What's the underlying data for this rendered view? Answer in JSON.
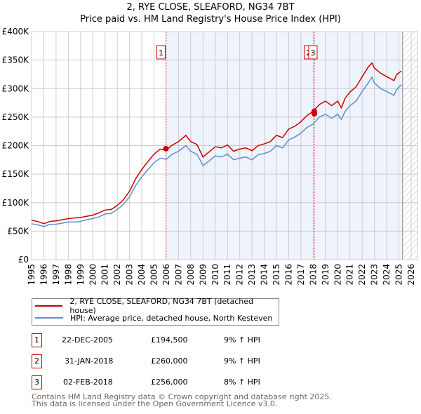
{
  "chart_data": {
    "type": "line",
    "title": "2, RYE CLOSE, SLEAFORD, NG34 7BT",
    "subtitle": "Price paid vs. HM Land Registry's House Price Index (HPI)",
    "xlim": [
      1995,
      2026
    ],
    "ylim": [
      0,
      400000
    ],
    "x_ticks": [
      "1995",
      "1996",
      "1997",
      "1998",
      "1999",
      "2000",
      "2001",
      "2002",
      "2003",
      "2004",
      "2005",
      "2006",
      "2007",
      "2008",
      "2009",
      "2010",
      "2011",
      "2012",
      "2013",
      "2014",
      "2015",
      "2016",
      "2017",
      "2018",
      "2019",
      "2020",
      "2021",
      "2022",
      "2023",
      "2024",
      "2025",
      "2026"
    ],
    "y_ticks": [
      {
        "v": 0,
        "label": "£0"
      },
      {
        "v": 50000,
        "label": "£50K"
      },
      {
        "v": 100000,
        "label": "£100K"
      },
      {
        "v": 150000,
        "label": "£150K"
      },
      {
        "v": 200000,
        "label": "£200K"
      },
      {
        "v": 250000,
        "label": "£250K"
      },
      {
        "v": 300000,
        "label": "£300K"
      },
      {
        "v": 350000,
        "label": "£350K"
      },
      {
        "v": 400000,
        "label": "£400K"
      }
    ],
    "grid": true,
    "shaded_span": [
      2005.97,
      2025.3
    ],
    "forecast_hatch_from": 2025.3,
    "x": [
      1995,
      1995.5,
      1996,
      1996.5,
      1997,
      1997.5,
      1998,
      1998.5,
      1999,
      1999.5,
      2000,
      2000.5,
      2001,
      2001.5,
      2002,
      2002.5,
      2003,
      2003.5,
      2004,
      2004.5,
      2005,
      2005.5,
      2006,
      2006.5,
      2007,
      2007.6,
      2008,
      2008.5,
      2009,
      2009.5,
      2010,
      2010.5,
      2011,
      2011.5,
      2012,
      2012.5,
      2013,
      2013.5,
      2014,
      2014.5,
      2015,
      2015.5,
      2016,
      2016.5,
      2017,
      2017.5,
      2018,
      2018.5,
      2019,
      2019.5,
      2020,
      2020.3,
      2020.6,
      2021,
      2021.5,
      2022,
      2022.5,
      2022.8,
      2023,
      2023.5,
      2024,
      2024.6,
      2024.8,
      2025.2
    ],
    "series": [
      {
        "name": "2, RYE CLOSE, SLEAFORD, NG34 7BT (detached house)",
        "color": "#cc0000",
        "values": [
          69000,
          67000,
          63000,
          67000,
          68000,
          70000,
          72000,
          73000,
          74000,
          76000,
          78000,
          82000,
          87000,
          88000,
          95000,
          105000,
          120000,
          142000,
          158000,
          172000,
          185000,
          194000,
          192000,
          201000,
          207000,
          218000,
          207000,
          202000,
          180000,
          189000,
          198000,
          196000,
          201000,
          190000,
          194000,
          196000,
          191000,
          200000,
          203000,
          207000,
          218000,
          214000,
          229000,
          234000,
          242000,
          253000,
          260000,
          272000,
          278000,
          270000,
          278000,
          266000,
          283000,
          294000,
          303000,
          321000,
          338000,
          345000,
          336000,
          327000,
          321000,
          314000,
          324000,
          331000
        ]
      },
      {
        "name": "HPI: Average price, detached house, North Kesteven",
        "color": "#5b8fd4",
        "values": [
          63000,
          61000,
          58000,
          62000,
          62000,
          64000,
          66000,
          66000,
          67000,
          70000,
          72000,
          75000,
          80000,
          81000,
          88000,
          97000,
          110000,
          130000,
          145000,
          158000,
          170000,
          178000,
          176000,
          185000,
          190000,
          200000,
          190000,
          185000,
          165000,
          173000,
          182000,
          180000,
          185000,
          175000,
          178000,
          180000,
          175000,
          184000,
          186000,
          190000,
          200000,
          196000,
          210000,
          215000,
          222000,
          232000,
          238000,
          250000,
          255000,
          248000,
          255000,
          246000,
          260000,
          270000,
          278000,
          295000,
          310000,
          320000,
          310000,
          300000,
          295000,
          288000,
          298000,
          307000
        ]
      }
    ],
    "sales": [
      {
        "id": "1",
        "x": 2005.97,
        "price": 194500,
        "date": "22-DEC-2005",
        "price_label": "£194,500",
        "hpi": "9% ↑ HPI"
      },
      {
        "id": "2",
        "x": 2018.08,
        "price": 260000,
        "date": "31-JAN-2018",
        "price_label": "£260,000",
        "hpi": "9% ↑ HPI"
      },
      {
        "id": "3",
        "x": 2018.09,
        "price": 256000,
        "date": "02-FEB-2018",
        "price_label": "£256,000",
        "hpi": "8% ↑ HPI"
      }
    ]
  },
  "legend": {
    "red_label": "2, RYE CLOSE, SLEAFORD, NG34 7BT (detached house)",
    "blue_label": "HPI: Average price, detached house, North Kesteven"
  },
  "footer": {
    "line1": "Contains HM Land Registry data © Crown copyright and database right 2025.",
    "line2": "This data is licensed under the Open Government Licence v3.0."
  }
}
